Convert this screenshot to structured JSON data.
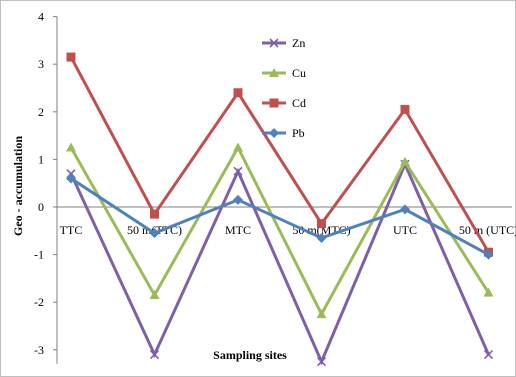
{
  "chart_data": {
    "type": "line",
    "categories": [
      "TTC",
      "50 m(TTC)",
      "MTC",
      "50 m(MTC)",
      "UTC",
      "50 m (UTC)"
    ],
    "ylabel": "Geo - accumulation",
    "xlabel": "Sampling sites",
    "ylim": [
      -3,
      4
    ],
    "yticks": [
      4,
      3,
      2,
      1,
      0,
      -1,
      -2,
      -3
    ],
    "grid": false,
    "legend_position": "top-center",
    "series": [
      {
        "name": "Zn",
        "color": "#7f5fa8",
        "marker": "x",
        "values": [
          0.7,
          -3.1,
          0.75,
          -3.25,
          0.9,
          -3.1
        ]
      },
      {
        "name": "Cu",
        "color": "#9bbb59",
        "marker": "triangle",
        "values": [
          1.25,
          -1.85,
          1.25,
          -2.25,
          0.95,
          -1.8
        ]
      },
      {
        "name": "Cd",
        "color": "#c0504d",
        "marker": "square",
        "values": [
          3.15,
          -0.15,
          2.4,
          -0.35,
          2.05,
          -0.95
        ]
      },
      {
        "name": "Pb",
        "color": "#4f81bd",
        "marker": "diamond",
        "values": [
          0.6,
          -0.55,
          0.15,
          -0.65,
          -0.05,
          -1.0
        ]
      }
    ]
  }
}
